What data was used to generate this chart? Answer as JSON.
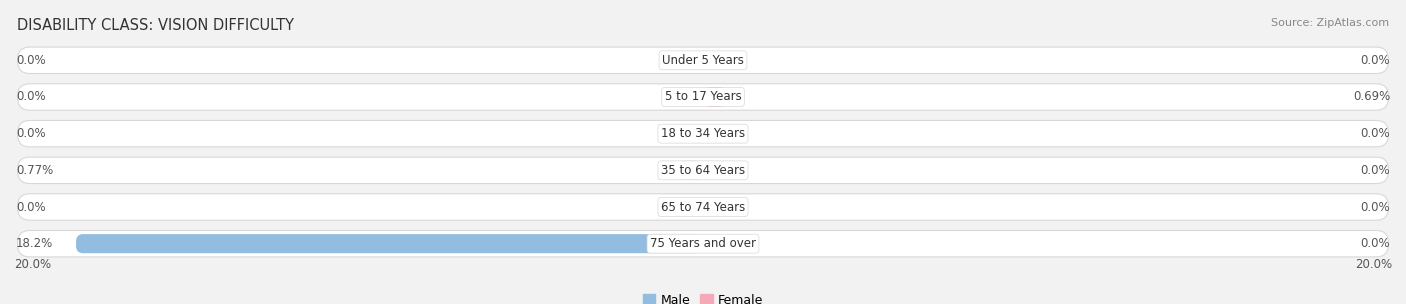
{
  "title": "DISABILITY CLASS: VISION DIFFICULTY",
  "source": "Source: ZipAtlas.com",
  "categories": [
    "Under 5 Years",
    "5 to 17 Years",
    "18 to 34 Years",
    "35 to 64 Years",
    "65 to 74 Years",
    "75 Years and over"
  ],
  "male_values": [
    0.0,
    0.0,
    0.0,
    0.77,
    0.0,
    18.2
  ],
  "female_values": [
    0.0,
    0.69,
    0.0,
    0.0,
    0.0,
    0.0
  ],
  "male_color": "#92bce0",
  "female_color_normal": "#f4a8b8",
  "female_color_bright": "#e8366e",
  "bar_bg_color": "#efefef",
  "bar_bg_outline": "#d8d8d8",
  "xlim": 20.0,
  "title_fontsize": 10.5,
  "source_fontsize": 8,
  "label_fontsize": 8.5,
  "category_fontsize": 8.5,
  "legend_fontsize": 9,
  "fig_bg_color": "#f2f2f2"
}
